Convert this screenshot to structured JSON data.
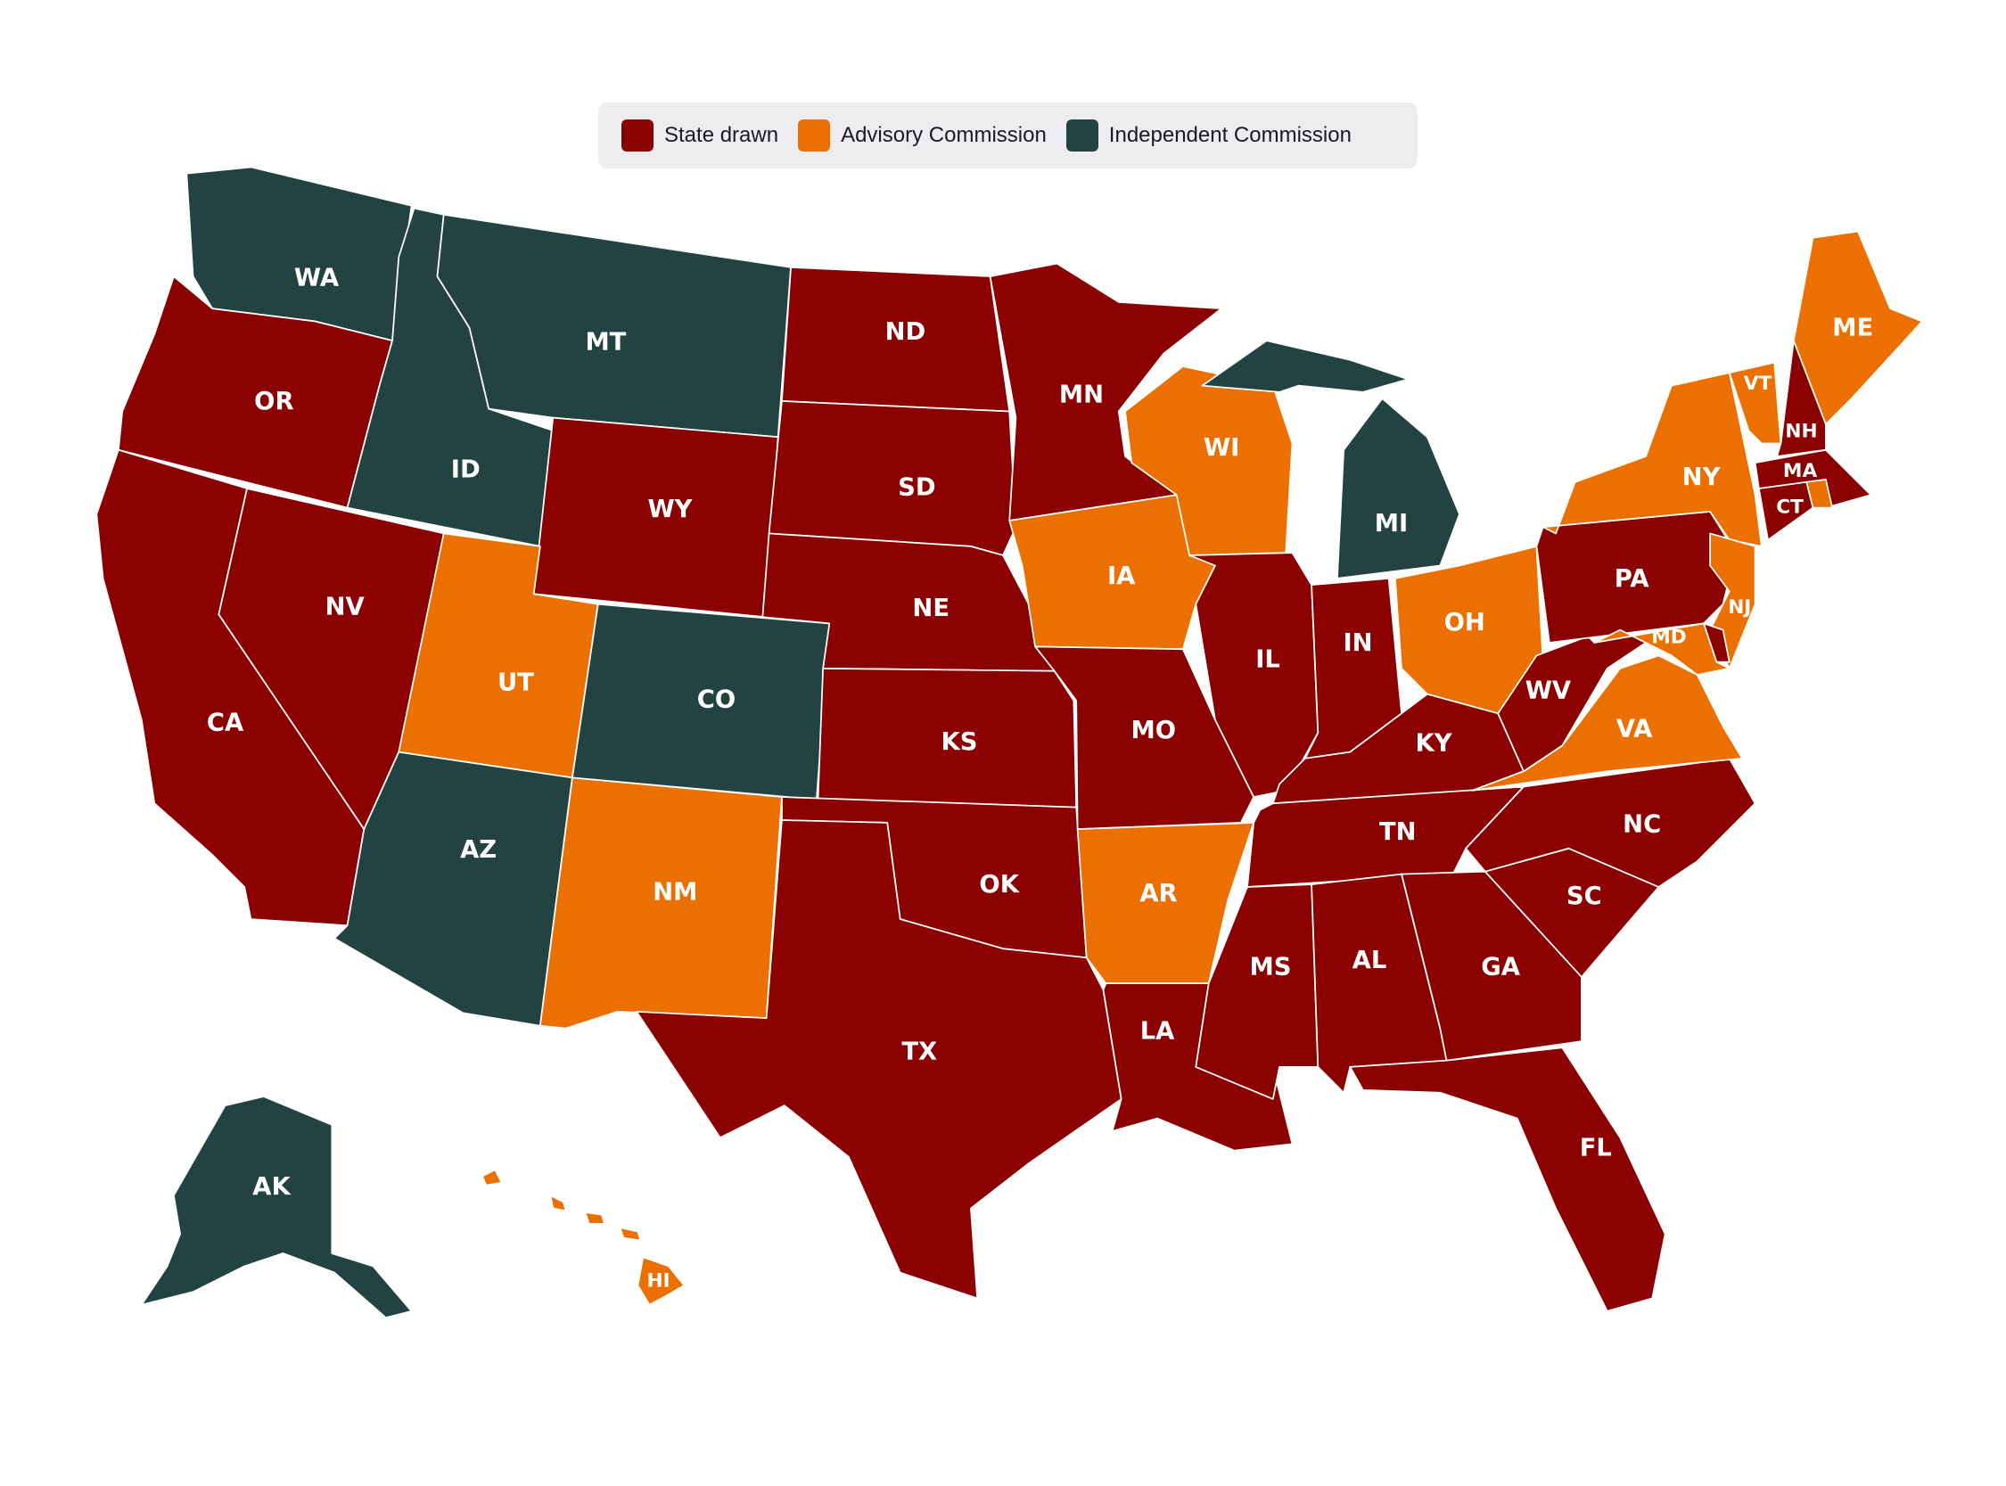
{
  "legend": {
    "items": [
      {
        "label": "State drawn",
        "key": "state",
        "color": "#8b0000"
      },
      {
        "label": "Advisory Commission",
        "key": "advisory",
        "color": "#ec7000"
      },
      {
        "label": "Independent Commission",
        "key": "independent",
        "color": "#234343"
      }
    ]
  },
  "states": [
    {
      "abbr": "WA",
      "category": "independent"
    },
    {
      "abbr": "OR",
      "category": "state"
    },
    {
      "abbr": "CA",
      "category": "state"
    },
    {
      "abbr": "NV",
      "category": "state"
    },
    {
      "abbr": "ID",
      "category": "independent"
    },
    {
      "abbr": "MT",
      "category": "independent"
    },
    {
      "abbr": "WY",
      "category": "state"
    },
    {
      "abbr": "UT",
      "category": "advisory"
    },
    {
      "abbr": "CO",
      "category": "independent"
    },
    {
      "abbr": "AZ",
      "category": "independent"
    },
    {
      "abbr": "NM",
      "category": "advisory"
    },
    {
      "abbr": "ND",
      "category": "state"
    },
    {
      "abbr": "SD",
      "category": "state"
    },
    {
      "abbr": "NE",
      "category": "state"
    },
    {
      "abbr": "KS",
      "category": "state"
    },
    {
      "abbr": "OK",
      "category": "state"
    },
    {
      "abbr": "TX",
      "category": "state"
    },
    {
      "abbr": "MN",
      "category": "state"
    },
    {
      "abbr": "IA",
      "category": "advisory"
    },
    {
      "abbr": "MO",
      "category": "state"
    },
    {
      "abbr": "AR",
      "category": "advisory"
    },
    {
      "abbr": "LA",
      "category": "state"
    },
    {
      "abbr": "WI",
      "category": "advisory"
    },
    {
      "abbr": "IL",
      "category": "state"
    },
    {
      "abbr": "MI",
      "category": "independent"
    },
    {
      "abbr": "IN",
      "category": "state"
    },
    {
      "abbr": "OH",
      "category": "advisory"
    },
    {
      "abbr": "KY",
      "category": "state"
    },
    {
      "abbr": "TN",
      "category": "state"
    },
    {
      "abbr": "MS",
      "category": "state"
    },
    {
      "abbr": "AL",
      "category": "state"
    },
    {
      "abbr": "GA",
      "category": "state"
    },
    {
      "abbr": "FL",
      "category": "state"
    },
    {
      "abbr": "SC",
      "category": "state"
    },
    {
      "abbr": "NC",
      "category": "state"
    },
    {
      "abbr": "VA",
      "category": "advisory"
    },
    {
      "abbr": "WV",
      "category": "state"
    },
    {
      "abbr": "PA",
      "category": "state"
    },
    {
      "abbr": "NY",
      "category": "advisory"
    },
    {
      "abbr": "VT",
      "category": "advisory"
    },
    {
      "abbr": "NH",
      "category": "state"
    },
    {
      "abbr": "ME",
      "category": "advisory"
    },
    {
      "abbr": "MA",
      "category": "state"
    },
    {
      "abbr": "CT",
      "category": "state"
    },
    {
      "abbr": "RI",
      "category": "advisory",
      "unlabeled": true
    },
    {
      "abbr": "NJ",
      "category": "advisory"
    },
    {
      "abbr": "DE",
      "category": "state",
      "unlabeled": true
    },
    {
      "abbr": "MD",
      "category": "advisory"
    },
    {
      "abbr": "AK",
      "category": "independent"
    },
    {
      "abbr": "HI",
      "category": "advisory"
    }
  ]
}
